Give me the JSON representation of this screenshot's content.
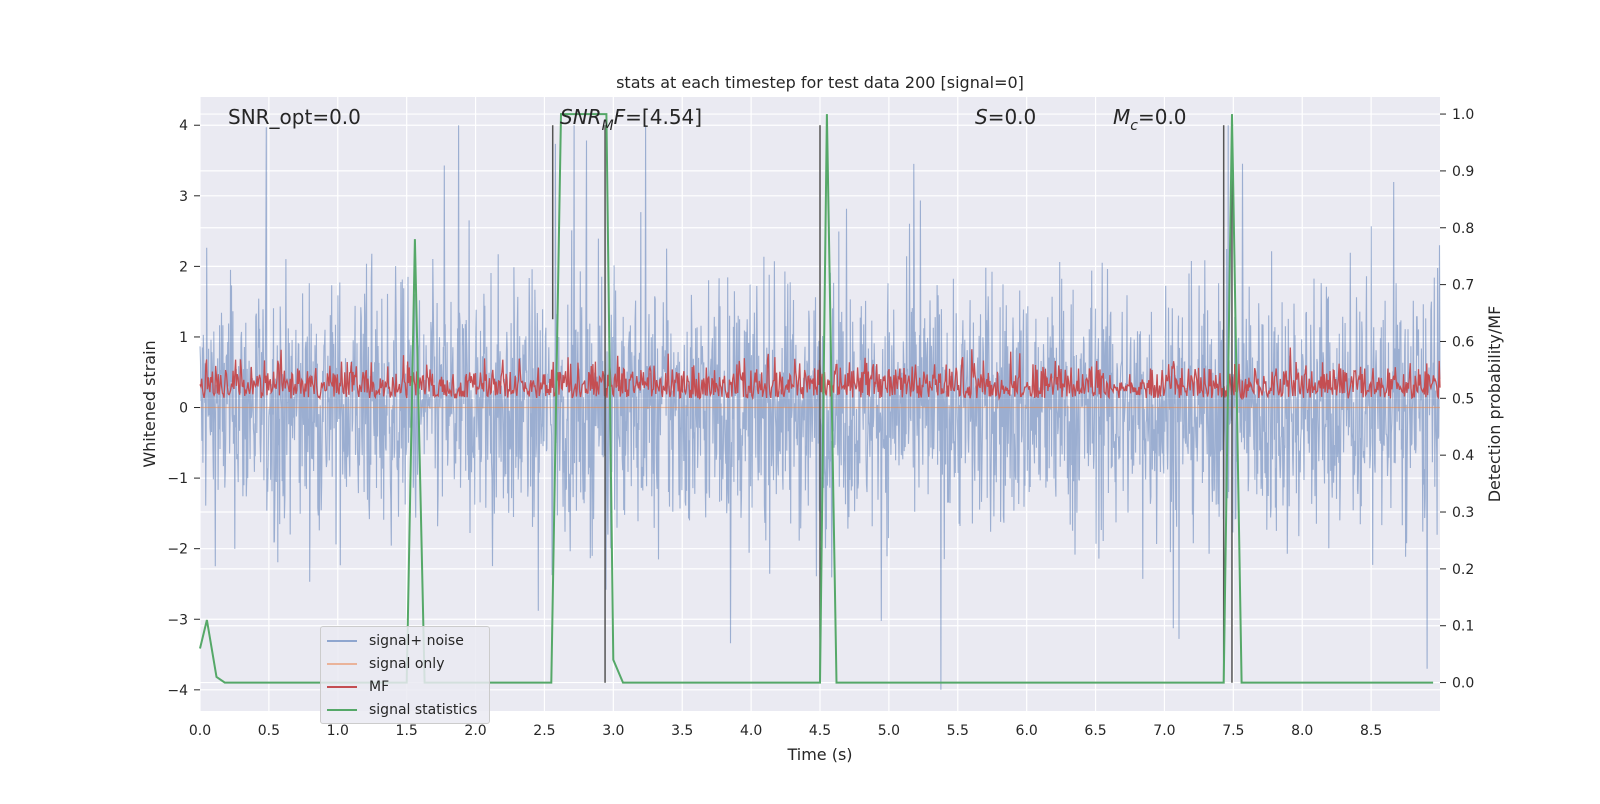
{
  "chart_data": {
    "type": "line",
    "title": "stats at each timestep for test data 200 [signal=0]",
    "xlabel": "Time (s)",
    "ylabel": "Whitened strain",
    "ylabel_right": "Detection probability/MF",
    "xlim": [
      0.0,
      9.0
    ],
    "ylim": [
      -4.3,
      4.4
    ],
    "ylim_right": [
      -0.05,
      1.03
    ],
    "x_ticks": [
      "0.0",
      "0.5",
      "1.0",
      "1.5",
      "2.0",
      "2.5",
      "3.0",
      "3.5",
      "4.0",
      "4.5",
      "5.0",
      "5.5",
      "6.0",
      "6.5",
      "7.0",
      "7.5",
      "8.0",
      "8.5"
    ],
    "y_ticks": [
      "−4",
      "−3",
      "−2",
      "−1",
      "0",
      "1",
      "2",
      "3",
      "4"
    ],
    "y_ticks_right": [
      "0.0",
      "0.1",
      "0.2",
      "0.3",
      "0.4",
      "0.5",
      "0.6",
      "0.7",
      "0.8",
      "0.9",
      "1.0"
    ],
    "grid": true,
    "legend_position": "lower-left",
    "annotations": [
      {
        "text": "SNR_opt=0.0",
        "x": 0.2
      },
      {
        "text": "SNR_MF=[4.54]",
        "x": 2.6
      },
      {
        "text": "S=0.0",
        "x": 5.6
      },
      {
        "text": "M_c=0.0",
        "x": 6.6
      }
    ],
    "series": [
      {
        "name": "signal+ noise",
        "color": "#4c72b0",
        "kind": "noise",
        "amplitude": 4.0
      },
      {
        "name": "signal only",
        "color": "#dd8452",
        "kind": "flat",
        "values": [
          0.0
        ]
      },
      {
        "name": "MF",
        "color": "#c44e52",
        "axis": "right",
        "kind": "mf_noise",
        "range": [
          0.5,
          0.6
        ]
      },
      {
        "name": "signal statistics",
        "color": "#55a868",
        "axis": "right",
        "x": [
          0.0,
          0.05,
          0.12,
          0.18,
          0.25,
          1.5,
          1.56,
          1.63,
          2.55,
          2.62,
          2.95,
          3.0,
          3.07,
          4.5,
          4.55,
          4.62,
          7.43,
          7.49,
          7.56,
          8.95
        ],
        "y": [
          0.06,
          0.11,
          0.01,
          0.0,
          0.0,
          0.0,
          0.78,
          0.0,
          0.0,
          1.0,
          1.0,
          0.04,
          0.0,
          0.0,
          1.0,
          0.0,
          0.0,
          1.0,
          0.0,
          0.0
        ]
      }
    ],
    "vlines": [
      {
        "x": 2.56,
        "y": [
          1.25,
          4.0
        ]
      },
      {
        "x": 2.94,
        "y": [
          -3.9,
          4.0
        ]
      },
      {
        "x": 4.5,
        "y": [
          -3.9,
          4.0
        ]
      },
      {
        "x": 7.43,
        "y": [
          -3.9,
          4.0
        ]
      },
      {
        "x": 7.49,
        "y": [
          -3.9,
          4.0
        ]
      }
    ]
  }
}
